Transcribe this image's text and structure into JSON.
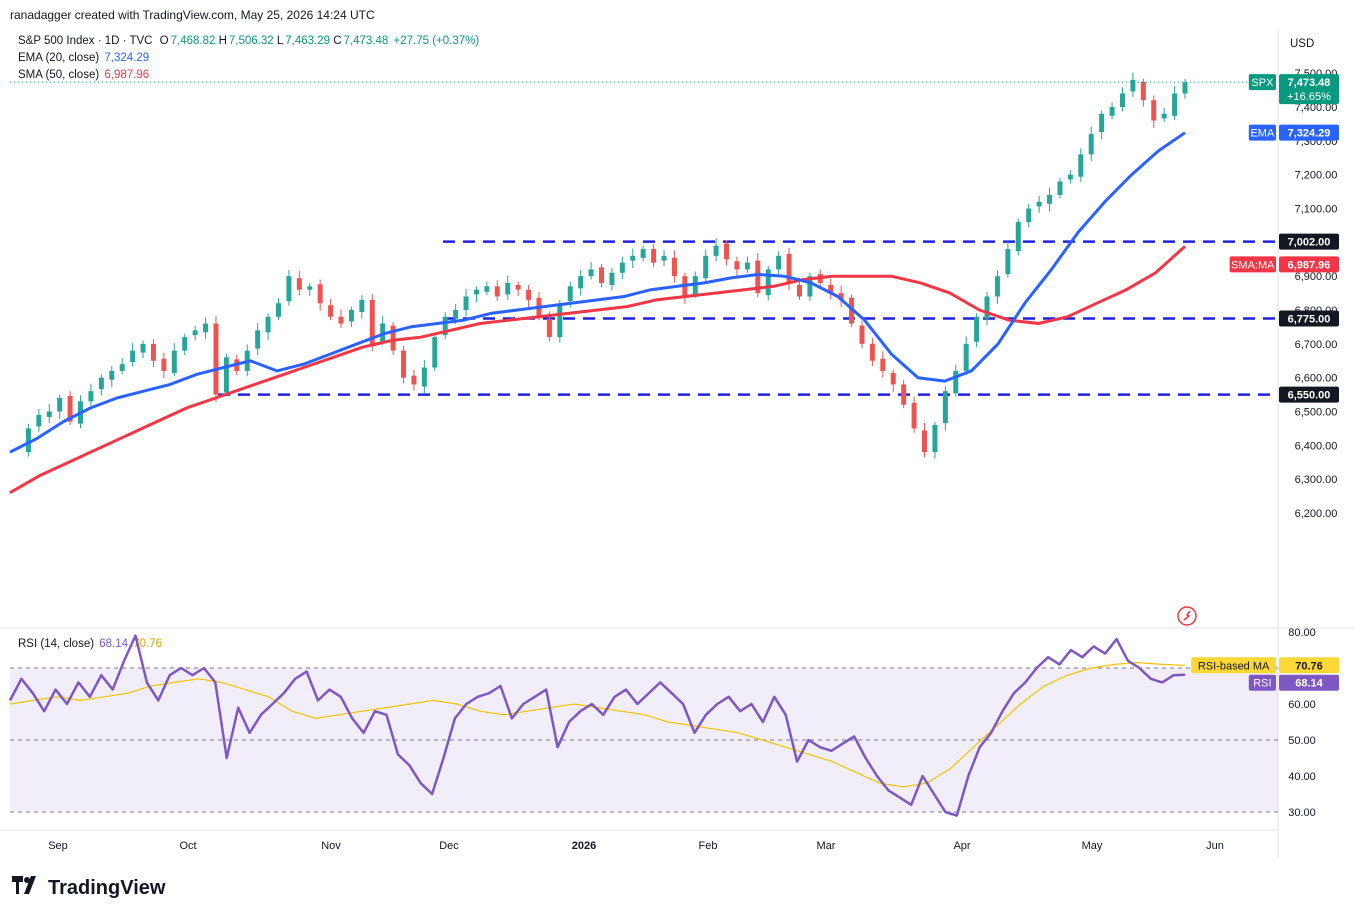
{
  "header": {
    "credit": "ranadagger created with TradingView.com, May 25, 2026 14:24 UTC",
    "symbol_line": "S&P 500 Index · 1D · TVC",
    "open_label": "O",
    "open": "7,468.82",
    "high_label": "H",
    "high": "7,506.32",
    "low_label": "L",
    "low": "7,463.29",
    "close_label": "C",
    "close": "7,473.48",
    "change": "+27.75 (+0.37%)",
    "ema_label": "EMA (20, close)",
    "ema_value": "7,324.29",
    "sma_label": "SMA (50, close)",
    "sma_value": "6,987.96",
    "currency": "USD"
  },
  "rsi_legend": {
    "label": "RSI (14, close)",
    "rsi": "68.14",
    "ma": "70.76"
  },
  "tags": {
    "spx_label": "SPX",
    "spx_value": "7,473.48",
    "spx_change": "+16.65%",
    "ema_label": "EMA",
    "ema_value": "7,324.29",
    "sma_label": "SMA:MA",
    "sma_value": "6,987.96",
    "lvl_7002": "7,002.00",
    "lvl_6775": "6,775.00",
    "lvl_6550": "6,550.00",
    "rsi_ma_label": "RSI-based MA",
    "rsi_ma_value": "70.76",
    "rsi_label": "RSI",
    "rsi_value": "68.14"
  },
  "brand": {
    "name": "TradingView"
  },
  "colors": {
    "up": "#26a69a",
    "down": "#ef5350",
    "ema": "#2962ff",
    "sma": "#f23645",
    "rsi": "#7e57c2",
    "rsi_ma": "#f5c400",
    "level": "#1e22e0"
  },
  "chart_data": {
    "type": "candlestick",
    "price_axis": {
      "ticks": [
        6200,
        6300,
        6400,
        6500,
        6600,
        6700,
        6800,
        6900,
        7000,
        7100,
        7200,
        7300,
        7400,
        7500
      ],
      "labels": [
        "6,200.00",
        "6,300.00",
        "6,400.00",
        "6,500.00",
        "6,600.00",
        "6,700.00",
        "6,800.00",
        "6,900.00",
        "7,000.00",
        "7,100.00",
        "7,200.00",
        "7,300.00",
        "7,400.00",
        "7,500.00"
      ]
    },
    "rsi_axis": {
      "ticks": [
        30,
        40,
        50,
        60,
        70,
        80
      ],
      "labels": [
        "30.00",
        "40.00",
        "50.00",
        "60.00",
        "70.00",
        "80.00"
      ]
    },
    "time_axis": [
      "Sep",
      "Oct",
      "Nov",
      "Dec",
      "2026",
      "Feb",
      "Mar",
      "Apr",
      "May",
      "Jun"
    ],
    "levels": [
      7002,
      6775,
      6550
    ],
    "close_path": [
      6380,
      6450,
      6490,
      6500,
      6540,
      6470,
      6530,
      6560,
      6600,
      6620,
      6640,
      6680,
      6700,
      6650,
      6620,
      6680,
      6720,
      6740,
      6760,
      6550,
      6660,
      6620,
      6680,
      6740,
      6780,
      6820,
      6900,
      6860,
      6870,
      6820,
      6780,
      6760,
      6800,
      6830,
      6700,
      6760,
      6680,
      6600,
      6580,
      6630,
      6720,
      6780,
      6800,
      6840,
      6860,
      6870,
      6840,
      6880,
      6860,
      6830,
      6780,
      6720,
      6820,
      6870,
      6900,
      6920,
      6880,
      6910,
      6940,
      6960,
      6980,
      6940,
      6960,
      6900,
      6840,
      6900,
      6960,
      6990,
      6950,
      6920,
      6940,
      6850,
      6920,
      6960,
      6880,
      6840,
      6900,
      6880,
      6850,
      6830,
      6760,
      6700,
      6650,
      6620,
      6580,
      6520,
      6450,
      6380,
      6460,
      6560,
      6620,
      6700,
      6780,
      6840,
      6900,
      6980,
      7060,
      7100,
      7120,
      7140,
      7180,
      7200,
      7260,
      7320,
      7380,
      7400,
      7440,
      7480,
      7420,
      7360,
      7380,
      7440,
      7473
    ],
    "ema": [
      6380,
      6420,
      6470,
      6510,
      6540,
      6560,
      6580,
      6610,
      6630,
      6650,
      6620,
      6640,
      6670,
      6700,
      6730,
      6750,
      6760,
      6770,
      6790,
      6800,
      6810,
      6820,
      6830,
      6840,
      6860,
      6870,
      6880,
      6895,
      6905,
      6900,
      6880,
      6840,
      6770,
      6670,
      6600,
      6590,
      6620,
      6700,
      6820,
      6920,
      7030,
      7120,
      7200,
      7270,
      7324
    ],
    "sma": [
      6260,
      6310,
      6350,
      6390,
      6430,
      6470,
      6510,
      6540,
      6570,
      6600,
      6630,
      6660,
      6690,
      6710,
      6720,
      6740,
      6760,
      6770,
      6780,
      6790,
      6800,
      6810,
      6830,
      6840,
      6850,
      6860,
      6870,
      6890,
      6900,
      6900,
      6900,
      6880,
      6850,
      6800,
      6770,
      6760,
      6780,
      6820,
      6860,
      6910,
      6987.96
    ],
    "rsi": [
      61,
      67,
      63,
      58,
      64,
      60,
      66,
      62,
      68,
      64,
      72,
      79,
      66,
      61,
      68,
      70,
      68,
      70,
      66,
      45,
      59,
      52,
      57,
      60,
      63,
      67,
      69,
      61,
      64,
      62,
      56,
      52,
      58,
      57,
      46,
      43,
      38,
      35,
      45,
      56,
      60,
      62,
      63,
      65,
      56,
      60,
      62,
      64,
      48,
      55,
      58,
      60,
      57,
      62,
      64,
      60,
      63,
      66,
      63,
      60,
      52,
      57,
      60,
      62,
      58,
      60,
      55,
      62,
      57,
      44,
      50,
      48,
      47,
      49,
      51,
      45,
      40,
      36,
      34,
      32,
      40,
      35,
      30,
      29,
      40,
      48,
      52,
      58,
      63,
      66,
      70,
      73,
      71,
      75,
      73,
      76,
      74,
      78,
      72,
      70,
      67,
      66,
      68,
      68.14
    ],
    "rsi_ma": [
      60,
      61,
      62,
      61,
      62,
      63,
      65,
      66,
      67,
      66,
      64,
      62,
      58,
      56,
      57,
      58,
      59,
      60,
      61,
      60,
      58,
      57,
      58,
      59,
      60,
      59,
      58,
      57,
      55,
      54,
      53,
      52,
      50,
      48,
      46,
      44,
      41,
      38,
      37,
      38,
      42,
      48,
      54,
      60,
      65,
      68,
      70,
      71,
      71.5,
      71,
      70.76
    ]
  }
}
